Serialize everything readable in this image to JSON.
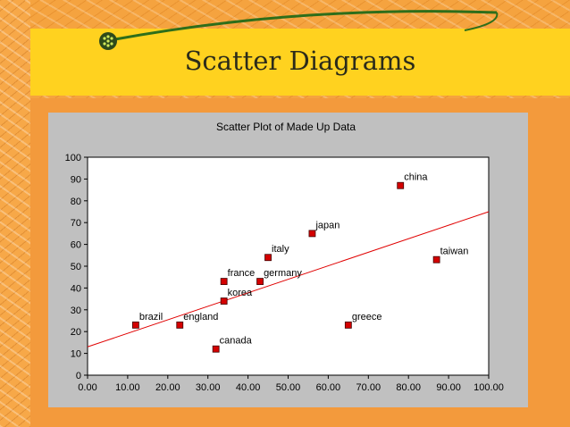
{
  "slide": {
    "title": "Scatter Diagrams"
  },
  "colors": {
    "background": "#f39a3c",
    "title_bar": "#ffd21f",
    "chart_background": "#c0c0c0",
    "plot_area": "#ffffff",
    "marker": "#d40000",
    "trendline": "#e00000",
    "swoosh": "#2e6e1a"
  },
  "icons": [
    "bullet-circle-icon"
  ],
  "chart_data": {
    "type": "scatter",
    "title": "Scatter Plot of Made Up Data",
    "xlabel": "",
    "ylabel": "",
    "xlim": [
      0,
      100
    ],
    "ylim": [
      0,
      100
    ],
    "x_ticks": [
      "0.00",
      "10.00",
      "20.00",
      "30.00",
      "40.00",
      "50.00",
      "60.00",
      "70.00",
      "80.00",
      "90.00",
      "100.00"
    ],
    "y_ticks": [
      "0",
      "10",
      "20",
      "30",
      "40",
      "50",
      "60",
      "70",
      "80",
      "90",
      "100"
    ],
    "grid": false,
    "legend": "none",
    "points": [
      {
        "label": "brazil",
        "x": 12,
        "y": 23
      },
      {
        "label": "england",
        "x": 23,
        "y": 23
      },
      {
        "label": "canada",
        "x": 32,
        "y": 12
      },
      {
        "label": "korea",
        "x": 34,
        "y": 34
      },
      {
        "label": "france",
        "x": 34,
        "y": 43
      },
      {
        "label": "germany",
        "x": 43,
        "y": 43
      },
      {
        "label": "italy",
        "x": 45,
        "y": 54
      },
      {
        "label": "japan",
        "x": 56,
        "y": 65
      },
      {
        "label": "greece",
        "x": 65,
        "y": 23
      },
      {
        "label": "china",
        "x": 78,
        "y": 87
      },
      {
        "label": "taiwan",
        "x": 87,
        "y": 53
      }
    ],
    "trendline": {
      "x": [
        0,
        100
      ],
      "y": [
        13,
        75
      ]
    }
  }
}
